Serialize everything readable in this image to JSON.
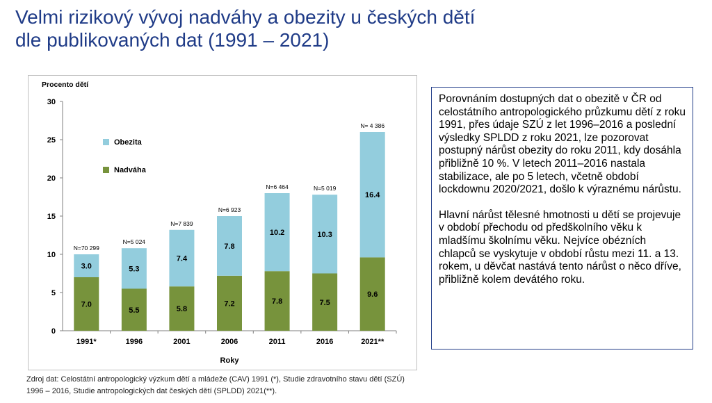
{
  "title": {
    "line1": "Velmi rizikový vývoj nadváhy a obezity u českých dětí",
    "line2": "dle publikovaných dat (1991 – 2021)"
  },
  "chart_data": {
    "type": "bar",
    "stacked": true,
    "ylabel": "Procento dětí",
    "xlabel": "Roky",
    "ylim": [
      0,
      30
    ],
    "yticks": [
      0,
      5,
      10,
      15,
      20,
      25,
      30
    ],
    "grid": false,
    "legend_placement": "top-left",
    "categories": [
      "1991*",
      "1996",
      "2001",
      "2006",
      "2011",
      "2016",
      "2021**"
    ],
    "sample_sizes": [
      "N=70 299",
      "N=5 024",
      "N=7 839",
      "N=6 923",
      "N=6 464",
      "N=5 019",
      "N= 4 386"
    ],
    "series": [
      {
        "name": "Nadváha",
        "color": "#77933c",
        "values": [
          7.0,
          5.5,
          5.8,
          7.2,
          7.8,
          7.5,
          9.6
        ],
        "labels": [
          "7.0",
          "5.5",
          "5.8",
          "7.2",
          "7.8",
          "7.5",
          "9.6"
        ]
      },
      {
        "name": "Obezita",
        "color": "#93cddd",
        "values": [
          3.0,
          5.3,
          7.4,
          7.8,
          10.2,
          10.3,
          16.4
        ],
        "labels": [
          "3.0",
          "5.3",
          "7.4",
          "7.8",
          "10.2",
          "10.3",
          "16.4"
        ]
      }
    ],
    "legend_order": [
      "Obezita",
      "Nadváha"
    ]
  },
  "info_box": {
    "paragraph1": "Porovnáním dostupných dat o obezitě v ČR od celostátního antropologického průzkumu dětí z roku 1991, přes údaje SZÚ z let 1996–2016 a poslední výsledky SPLDD z roku 2021, lze pozorovat postupný nárůst obezity do roku 2011, kdy dosáhla přibližně 10 %. V letech 2011–2016 nastala stabilizace, ale po 5 letech, včetně období lockdownu 2020/2021, došlo k výraznému nárůstu.",
    "paragraph2": "Hlavní nárůst tělesné hmotnosti u dětí se projevuje v období přechodu od předškolního věku k mladšímu školnímu věku. Nejvíce obézních chlapců se vyskytuje v období růstu mezi 11. a 13. rokem, u děvčat nastává tento nárůst o něco dříve, přibližně kolem devátého roku."
  },
  "source": {
    "line1": "Zdroj dat: Celostátní antropologický výzkum dětí a mládeže (CAV) 1991 (*), Studie zdravotního stavu dětí (SZÚ)",
    "line2": "1996 – 2016, Studie antropologických dat českých dětí (SPLDD) 2021(**)."
  }
}
